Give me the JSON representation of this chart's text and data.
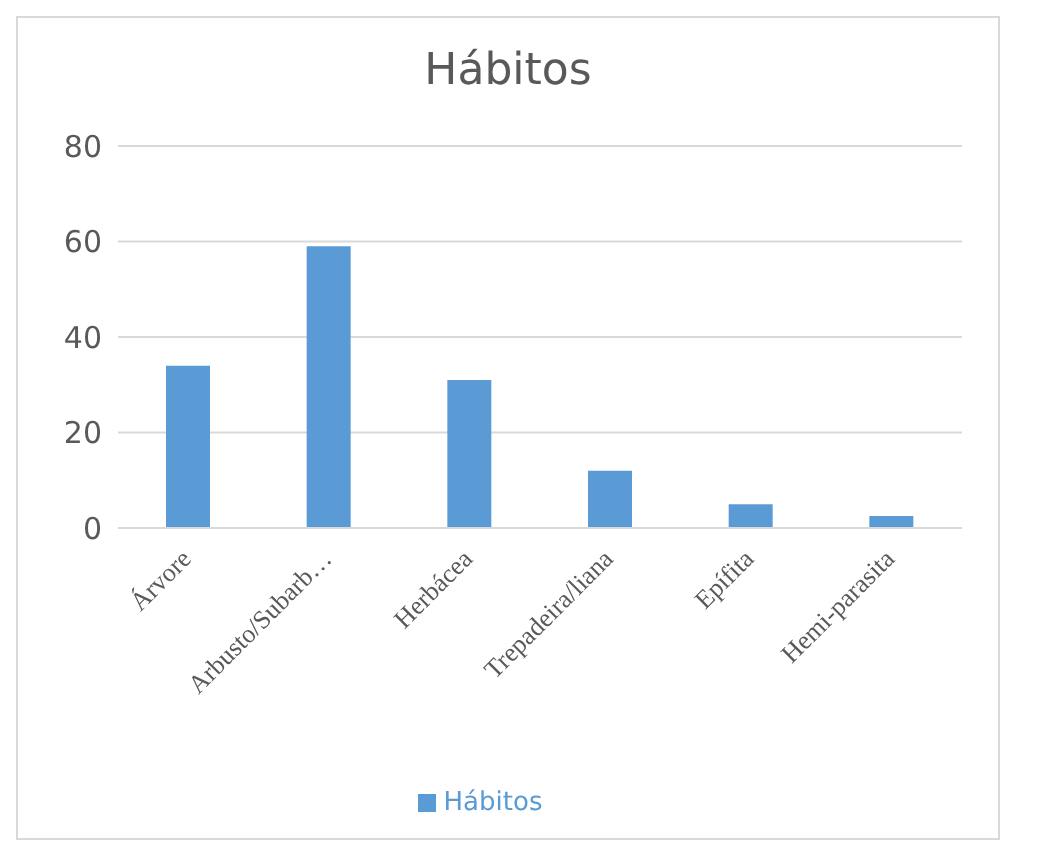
{
  "chart_data": {
    "type": "bar",
    "title": "Hábitos",
    "categories": [
      "Árvore",
      "Arbusto/Subarb…",
      "Herbácea",
      "Trepadeira/liana",
      "Epífita",
      "Hemi-parasita"
    ],
    "series": [
      {
        "name": "Hábitos",
        "color": "#5b9bd5",
        "values": [
          34,
          59,
          31,
          12,
          5,
          2.5
        ]
      }
    ],
    "ylim": [
      0,
      80
    ],
    "yticks": [
      0,
      20,
      40,
      60,
      80
    ],
    "grid": "y",
    "legend": "bottom"
  }
}
